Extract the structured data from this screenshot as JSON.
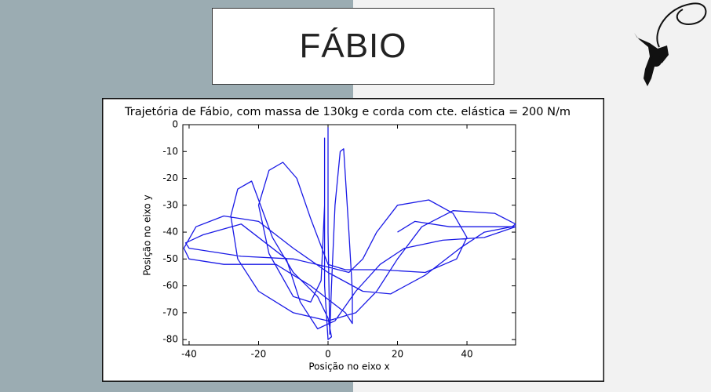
{
  "slide": {
    "title": "FÁBIO"
  },
  "chart_data": {
    "type": "line",
    "title": "Trajetória de Fábio, com massa de 130kg e corda com cte. elástica = 200 N/m",
    "x_label": "Posição no eixo x",
    "y_label": "Posição no eixo y",
    "xlim": [
      -41.8,
      54
    ],
    "ylim": [
      -82,
      0
    ],
    "xticks": [
      -40,
      -20,
      0,
      20,
      40
    ],
    "yticks": [
      0,
      -10,
      -20,
      -30,
      -40,
      -50,
      -60,
      -70,
      -80
    ],
    "x": [
      0,
      0,
      0.5,
      1,
      2,
      3.5,
      4.5,
      6,
      7,
      7,
      5,
      -5,
      -15,
      -30,
      -40,
      -41.5,
      -38,
      -30,
      -20,
      -10,
      0,
      10,
      18,
      28,
      38,
      45,
      53,
      54,
      48,
      36,
      27,
      20,
      14,
      8,
      0,
      -10,
      -20,
      -26,
      -28,
      -26,
      -22,
      -20,
      -16,
      -10,
      -3,
      0,
      1,
      0,
      -1,
      -1,
      -1,
      -1,
      -2,
      -5,
      -10,
      -17,
      -20,
      -17,
      -13,
      -9,
      -5,
      0,
      5,
      15,
      28,
      37,
      40,
      36,
      29,
      20,
      14,
      10,
      6,
      0,
      -10,
      -25,
      -40,
      -41,
      -36,
      -25,
      -12,
      -8,
      -3,
      2,
      8,
      15,
      22,
      33,
      45,
      54,
      46,
      35,
      25,
      20
    ],
    "series": [
      {
        "color": "#1a1ae6",
        "values": [
          -1,
          -40,
          -78,
          -60,
          -30,
          -10,
          -9,
          -40,
          -62,
          -74,
          -70,
          -60,
          -52,
          -52,
          -50,
          -46,
          -38,
          -34,
          -36,
          -46,
          -55,
          -62,
          -63,
          -56,
          -46,
          -40,
          -38,
          -37,
          -33,
          -32,
          -38,
          -50,
          -62,
          -70,
          -73,
          -70,
          -62,
          -50,
          -34,
          -24,
          -21,
          -28,
          -42,
          -55,
          -64,
          -72,
          -79,
          -80,
          -60,
          -20,
          -5,
          -30,
          -58,
          -66,
          -64,
          -48,
          -30,
          -17,
          -14,
          -20,
          -35,
          -52,
          -54,
          -54,
          -55,
          -50,
          -42,
          -33,
          -28,
          -30,
          -40,
          -50,
          -55,
          -53,
          -50,
          -49,
          -46,
          -44,
          -41,
          -37,
          -50,
          -66,
          -76,
          -73,
          -62,
          -52,
          -46,
          -43,
          -42,
          -38,
          -38,
          -38,
          -36,
          -40
        ]
      }
    ]
  }
}
